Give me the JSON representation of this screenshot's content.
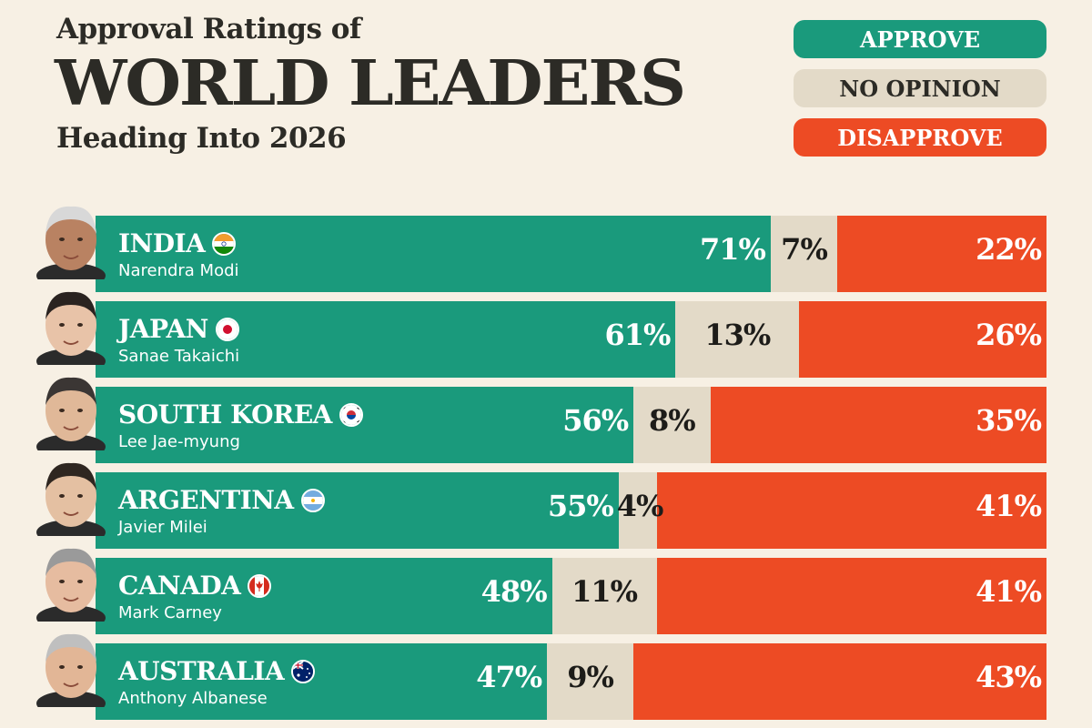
{
  "header": {
    "pre_title": "Approval Ratings of",
    "title": "WORLD LEADERS",
    "subtitle": "Heading Into 2026"
  },
  "legend": {
    "approve": "APPROVE",
    "no_opinion": "NO OPINION",
    "disapprove": "DISAPPROVE"
  },
  "colors": {
    "approve": "#1a9a7c",
    "no_opinion": "#e3dac8",
    "disapprove": "#ed4b24",
    "background": "#f7f0e4",
    "text": "#2c2b26"
  },
  "chart_data": {
    "type": "bar",
    "orientation": "horizontal",
    "stacked": true,
    "title": "Approval Ratings of WORLD LEADERS Heading Into 2026",
    "series_names": [
      "APPROVE",
      "NO OPINION",
      "DISAPPROVE"
    ],
    "rows": [
      {
        "country": "INDIA",
        "leader": "Narendra Modi",
        "flag": "india",
        "approve": 71,
        "no_opinion": 7,
        "disapprove": 22,
        "approve_label": "71%",
        "no_opinion_label": "7%",
        "disapprove_label": "22%"
      },
      {
        "country": "JAPAN",
        "leader": "Sanae Takaichi",
        "flag": "japan",
        "approve": 61,
        "no_opinion": 13,
        "disapprove": 26,
        "approve_label": "61%",
        "no_opinion_label": "13%",
        "disapprove_label": "26%"
      },
      {
        "country": "SOUTH KOREA",
        "leader": "Lee Jae-myung",
        "flag": "south-korea",
        "approve": 56,
        "no_opinion": 8,
        "disapprove": 35,
        "approve_label": "56%",
        "no_opinion_label": "8%",
        "disapprove_label": "35%"
      },
      {
        "country": "ARGENTINA",
        "leader": "Javier Milei",
        "flag": "argentina",
        "approve": 55,
        "no_opinion": 4,
        "disapprove": 41,
        "approve_label": "55%",
        "no_opinion_label": "4%",
        "disapprove_label": "41%"
      },
      {
        "country": "CANADA",
        "leader": "Mark Carney",
        "flag": "canada",
        "approve": 48,
        "no_opinion": 11,
        "disapprove": 41,
        "approve_label": "48%",
        "no_opinion_label": "11%",
        "disapprove_label": "41%"
      },
      {
        "country": "AUSTRALIA",
        "leader": "Anthony Albanese",
        "flag": "australia",
        "approve": 47,
        "no_opinion": 9,
        "disapprove": 43,
        "approve_label": "47%",
        "no_opinion_label": "9%",
        "disapprove_label": "43%"
      }
    ]
  }
}
